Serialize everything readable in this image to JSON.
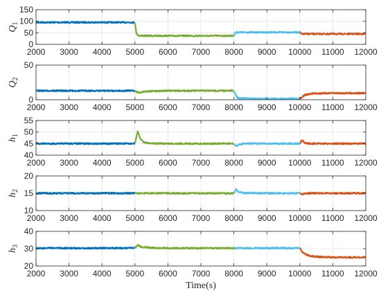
{
  "chart_data": [
    {
      "type": "line",
      "ylabel": "Q",
      "ylabel_sub": "1",
      "xlim": [
        2000,
        12000
      ],
      "ylim": [
        0,
        150
      ],
      "xticks": [
        "2000",
        "3000",
        "4000",
        "5000",
        "6000",
        "7000",
        "8000",
        "9000",
        "10000",
        "11000",
        "12000"
      ],
      "yticks": [
        "0",
        "50",
        "100",
        "150"
      ],
      "grid": true,
      "series": [
        {
          "color": "#0072BD",
          "x": [
            2000,
            5000
          ],
          "y": [
            95,
            95
          ]
        },
        {
          "color": "#77AC30",
          "x": [
            5000,
            5040,
            5100,
            5300,
            6000,
            8000
          ],
          "y": [
            95,
            50,
            38,
            37,
            37,
            37
          ]
        },
        {
          "color": "#4DBEEE",
          "x": [
            8000,
            8040,
            8100,
            10000
          ],
          "y": [
            37,
            50,
            52,
            52
          ]
        },
        {
          "color": "#D95319",
          "x": [
            10000,
            10050,
            10150,
            12000
          ],
          "y": [
            52,
            44,
            45,
            45
          ]
        }
      ]
    },
    {
      "type": "line",
      "ylabel": "Q",
      "ylabel_sub": "2",
      "xlim": [
        2000,
        12000
      ],
      "ylim": [
        0,
        50
      ],
      "xticks": [
        "2000",
        "3000",
        "4000",
        "5000",
        "6000",
        "7000",
        "8000",
        "9000",
        "10000",
        "11000",
        "12000"
      ],
      "yticks": [
        "0",
        "50"
      ],
      "grid": true,
      "series": [
        {
          "color": "#0072BD",
          "x": [
            2000,
            5000
          ],
          "y": [
            13,
            13
          ]
        },
        {
          "color": "#77AC30",
          "x": [
            5000,
            5100,
            5300,
            6000,
            8000
          ],
          "y": [
            13,
            10,
            12,
            13,
            13
          ]
        },
        {
          "color": "#4DBEEE",
          "x": [
            8000,
            8100,
            8250,
            9000,
            10000
          ],
          "y": [
            13,
            3,
            2,
            1.5,
            1.5
          ]
        },
        {
          "color": "#D95319",
          "x": [
            10000,
            10150,
            10400,
            11000,
            12000
          ],
          "y": [
            1.5,
            7,
            9,
            9.5,
            9.5
          ]
        }
      ]
    },
    {
      "type": "line",
      "ylabel": "h",
      "ylabel_sub": "1",
      "xlim": [
        2000,
        12000
      ],
      "ylim": [
        40,
        55
      ],
      "xticks": [
        "2000",
        "3000",
        "4000",
        "5000",
        "6000",
        "7000",
        "8000",
        "9000",
        "10000",
        "11000",
        "12000"
      ],
      "yticks": [
        "40",
        "45",
        "50",
        "55"
      ],
      "grid": true,
      "series": [
        {
          "color": "#0072BD",
          "x": [
            2000,
            5000
          ],
          "y": [
            45,
            45
          ]
        },
        {
          "color": "#77AC30",
          "x": [
            5000,
            5080,
            5150,
            5250,
            5400,
            6000,
            8000
          ],
          "y": [
            45,
            50.3,
            47.5,
            45.8,
            45.1,
            45,
            45
          ]
        },
        {
          "color": "#4DBEEE",
          "x": [
            8000,
            8060,
            8150,
            8300,
            9000,
            10000
          ],
          "y": [
            45,
            43.8,
            44.6,
            45,
            45,
            45
          ]
        },
        {
          "color": "#D95319",
          "x": [
            10000,
            10060,
            10150,
            10300,
            11000,
            12000
          ],
          "y": [
            45,
            46.4,
            45.3,
            45,
            45,
            45
          ]
        }
      ]
    },
    {
      "type": "line",
      "ylabel": "h",
      "ylabel_sub": "2",
      "xlim": [
        2000,
        12000
      ],
      "ylim": [
        10,
        20
      ],
      "xticks": [
        "2000",
        "3000",
        "4000",
        "5000",
        "6000",
        "7000",
        "8000",
        "9000",
        "10000",
        "11000",
        "12000"
      ],
      "yticks": [
        "10",
        "15",
        "20"
      ],
      "grid": true,
      "series": [
        {
          "color": "#0072BD",
          "x": [
            2000,
            5000
          ],
          "y": [
            15,
            15
          ]
        },
        {
          "color": "#77AC30",
          "x": [
            5000,
            8000
          ],
          "y": [
            15,
            15
          ]
        },
        {
          "color": "#4DBEEE",
          "x": [
            8000,
            8060,
            8150,
            8300,
            9000,
            10000
          ],
          "y": [
            15,
            16.1,
            15.4,
            15.1,
            15,
            15
          ]
        },
        {
          "color": "#D95319",
          "x": [
            10000,
            10060,
            10150,
            11000,
            12000
          ],
          "y": [
            15,
            14.7,
            15,
            15,
            15
          ]
        }
      ]
    },
    {
      "type": "line",
      "ylabel": "h",
      "ylabel_sub": "3",
      "xlabel": "Time(s)",
      "xlim": [
        2000,
        12000
      ],
      "ylim": [
        20,
        40
      ],
      "xticks": [
        "2000",
        "3000",
        "4000",
        "5000",
        "6000",
        "7000",
        "8000",
        "9000",
        "10000",
        "11000",
        "12000"
      ],
      "yticks": [
        "20",
        "30",
        "40"
      ],
      "grid": true,
      "series": [
        {
          "color": "#0072BD",
          "x": [
            2000,
            5000
          ],
          "y": [
            30.3,
            30.3
          ]
        },
        {
          "color": "#77AC30",
          "x": [
            5000,
            5080,
            5200,
            5500,
            6000,
            8000
          ],
          "y": [
            30.3,
            32,
            31,
            30.5,
            30.3,
            30.3
          ]
        },
        {
          "color": "#4DBEEE",
          "x": [
            8000,
            10000
          ],
          "y": [
            30.3,
            30.3
          ]
        },
        {
          "color": "#D95319",
          "x": [
            10000,
            10100,
            10300,
            10600,
            11000,
            12000
          ],
          "y": [
            30.3,
            27.5,
            25.8,
            25.2,
            25,
            25
          ]
        }
      ]
    }
  ]
}
